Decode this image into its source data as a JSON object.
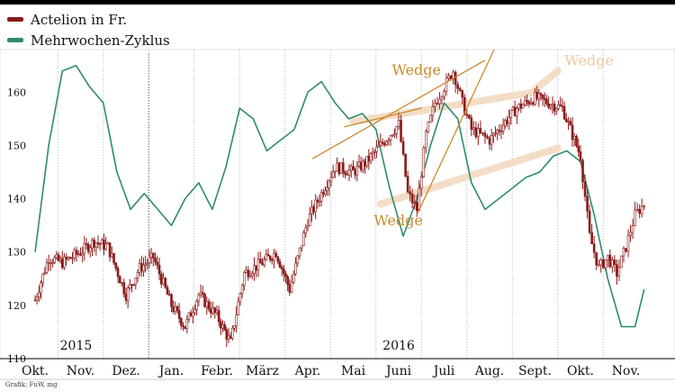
{
  "legend": {
    "series_1": {
      "label": "Actelion in Fr.",
      "color": "#8b1a1a"
    },
    "series_2": {
      "label": "Mehrwochen-Zyklus",
      "color": "#2e8b6e"
    }
  },
  "source": "Grafik: FuW, mg",
  "colors": {
    "wedge": "#cc8a2a",
    "wedge_faded": "#efc9a3",
    "shadow": "#f4ddc6",
    "axis": "#000000",
    "grid": "#bbbbbb"
  },
  "chart_data": {
    "type": "line",
    "x_tick_labels": [
      "Okt.",
      "Nov.",
      "Dez.",
      "Jan.",
      "Febr.",
      "März",
      "Apr.",
      "Mai",
      "Juni",
      "Juli",
      "Aug.",
      "Sept.",
      "Okt.",
      "Nov."
    ],
    "year_labels": [
      "2015",
      "2016"
    ],
    "ylim": [
      110,
      168
    ],
    "yticks": [
      110,
      120,
      130,
      140,
      150,
      160
    ],
    "series": [
      {
        "name": "Actelion in Fr.",
        "style": "candlestick",
        "x": [
          0,
          0.3,
          0.6,
          1,
          1.3,
          1.6,
          2,
          2.3,
          2.6,
          3,
          3.3,
          3.6,
          4,
          4.3,
          4.6,
          5,
          5.3,
          5.6,
          6,
          6.3,
          6.6,
          7,
          7.3,
          7.6,
          8,
          8.2,
          8.4,
          8.6,
          8.8,
          9,
          9.2,
          9.4,
          9.6,
          9.8,
          10,
          10.3,
          10.6,
          11,
          11.3,
          11.6,
          12,
          12.2,
          12.4,
          12.6,
          12.8,
          13,
          13.2,
          13.4
        ],
        "values": [
          121,
          129,
          128,
          130,
          132,
          131,
          122,
          127,
          129,
          120,
          116,
          122,
          118,
          113,
          126,
          128,
          130,
          123,
          136,
          141,
          146,
          145,
          147,
          150,
          154,
          141,
          138,
          152,
          158,
          161,
          164,
          158,
          153,
          152,
          151,
          154,
          157,
          159,
          158,
          157,
          148,
          133,
          127,
          129,
          126,
          131,
          137,
          139
        ]
      },
      {
        "name": "Mehrwochen-Zyklus",
        "style": "line",
        "x": [
          0,
          0.3,
          0.6,
          0.9,
          1.2,
          1.5,
          1.8,
          2.1,
          2.4,
          2.7,
          3,
          3.3,
          3.6,
          3.9,
          4.2,
          4.5,
          4.8,
          5.1,
          5.4,
          5.7,
          6,
          6.3,
          6.6,
          6.9,
          7.2,
          7.5,
          7.8,
          8.1,
          8.4,
          8.7,
          9,
          9.3,
          9.6,
          9.9,
          10.2,
          10.5,
          10.8,
          11.1,
          11.4,
          11.7,
          12,
          12.3,
          12.6,
          12.9,
          13.2,
          13.4
        ],
        "values": [
          130,
          150,
          164,
          165,
          161,
          158,
          145,
          138,
          141,
          138,
          135,
          140,
          143,
          138,
          146,
          157,
          155,
          149,
          151,
          153,
          160,
          162,
          158,
          155,
          156,
          153,
          142,
          133,
          140,
          150,
          158,
          155,
          143,
          138,
          140,
          142,
          144,
          145,
          148,
          149,
          147,
          137,
          125,
          116,
          116,
          123
        ]
      }
    ],
    "annotations": [
      {
        "text": "Wedge",
        "type": "wedge"
      },
      {
        "text": "Wedge",
        "type": "wedge"
      },
      {
        "text": "Wedge",
        "type": "wedge_faded"
      }
    ]
  }
}
